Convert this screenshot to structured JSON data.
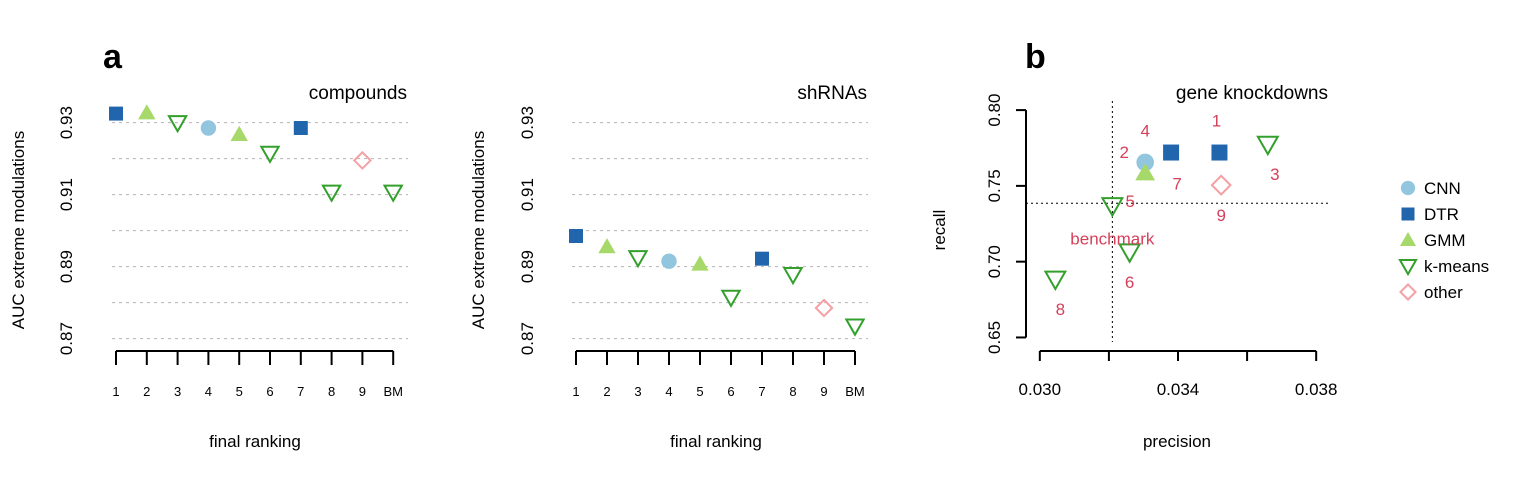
{
  "panel_labels": {
    "a": "a",
    "b": "b"
  },
  "legend": {
    "items": [
      {
        "label": "CNN",
        "shape": "circle",
        "color": "#92c5de",
        "filled": true
      },
      {
        "label": "DTR",
        "shape": "square",
        "color": "#2166ac",
        "filled": true
      },
      {
        "label": "GMM",
        "shape": "triangle-up",
        "color": "#a6d96a",
        "filled": true
      },
      {
        "label": "k-means",
        "shape": "triangle-down",
        "color": "#33a02c",
        "filled": false
      },
      {
        "label": "other",
        "shape": "diamond",
        "color": "#f4a0a4",
        "filled": false
      }
    ]
  },
  "chart_data": [
    {
      "type": "scatter",
      "title": "compounds",
      "xlabel": "final ranking",
      "ylabel": "AUC extreme modulations",
      "categories": [
        "1",
        "2",
        "3",
        "4",
        "5",
        "6",
        "7",
        "8",
        "9",
        "BM"
      ],
      "values": [
        0.9325,
        0.9327,
        0.93,
        0.9285,
        0.9267,
        0.9215,
        0.9285,
        0.9107,
        0.9195,
        0.9107
      ],
      "methods": [
        "DTR",
        "GMM",
        "k-means",
        "CNN",
        "GMM",
        "k-means",
        "DTR",
        "k-means",
        "other",
        "k-means"
      ],
      "ylim": [
        0.8685,
        0.936
      ],
      "yticks": [
        "0.87",
        "0.89",
        "0.91",
        "0.93"
      ],
      "gridlines": [
        0.87,
        0.88,
        0.89,
        0.9,
        0.91,
        0.92,
        0.93
      ]
    },
    {
      "type": "scatter",
      "title": "shRNAs",
      "xlabel": "final ranking",
      "ylabel": "AUC extreme modulations",
      "categories": [
        "1",
        "2",
        "3",
        "4",
        "5",
        "6",
        "7",
        "8",
        "9",
        "BM"
      ],
      "values": [
        0.8985,
        0.8955,
        0.8925,
        0.8915,
        0.8907,
        0.8815,
        0.8922,
        0.8878,
        0.8785,
        0.8735
      ],
      "methods": [
        "DTR",
        "GMM",
        "k-means",
        "CNN",
        "GMM",
        "k-means",
        "DTR",
        "k-means",
        "other",
        "k-means"
      ],
      "ylim": [
        0.8685,
        0.936
      ],
      "yticks": [
        "0.87",
        "0.89",
        "0.91",
        "0.93"
      ],
      "gridlines": [
        0.87,
        0.88,
        0.89,
        0.9,
        0.91,
        0.92,
        0.93
      ]
    },
    {
      "type": "scatter",
      "title": "gene knockdowns",
      "xlabel": "precision",
      "ylabel": "recall",
      "xlim": [
        0.0296,
        0.0384
      ],
      "ylim": [
        0.647,
        0.806
      ],
      "xticks": [
        "0.030",
        "0.034",
        "0.038"
      ],
      "xtick_values": [
        0.03,
        0.032,
        0.034,
        0.036,
        0.038
      ],
      "yticks": [
        "0.65",
        "0.70",
        "0.75",
        "0.80"
      ],
      "ytick_values": [
        0.65,
        0.7,
        0.75,
        0.8
      ],
      "reference_lines": {
        "precision": 0.0321,
        "recall": 0.7385
      },
      "points": [
        {
          "x": 0.03305,
          "y": 0.7655,
          "method": "CNN",
          "label": "4"
        },
        {
          "x": 0.0338,
          "y": 0.772,
          "method": "DTR",
          "label": "7"
        },
        {
          "x": 0.0352,
          "y": 0.772,
          "method": "DTR",
          "label": "1"
        },
        {
          "x": 0.03305,
          "y": 0.7585,
          "method": "GMM",
          "label": "2"
        },
        {
          "x": 0.0366,
          "y": 0.7775,
          "method": "k-means",
          "label": "3"
        },
        {
          "x": 0.0321,
          "y": 0.737,
          "method": "k-means",
          "label": "benchmark"
        },
        {
          "x": 0.0326,
          "y": 0.7065,
          "method": "k-means",
          "label": "6"
        },
        {
          "x": 0.03045,
          "y": 0.6885,
          "method": "k-means",
          "label": "8"
        },
        {
          "x": 0.03525,
          "y": 0.7505,
          "method": "other",
          "label": "9"
        }
      ],
      "extra_labels": [
        {
          "label": "5",
          "x": 0.03305,
          "y": 0.7525
        }
      ]
    }
  ]
}
